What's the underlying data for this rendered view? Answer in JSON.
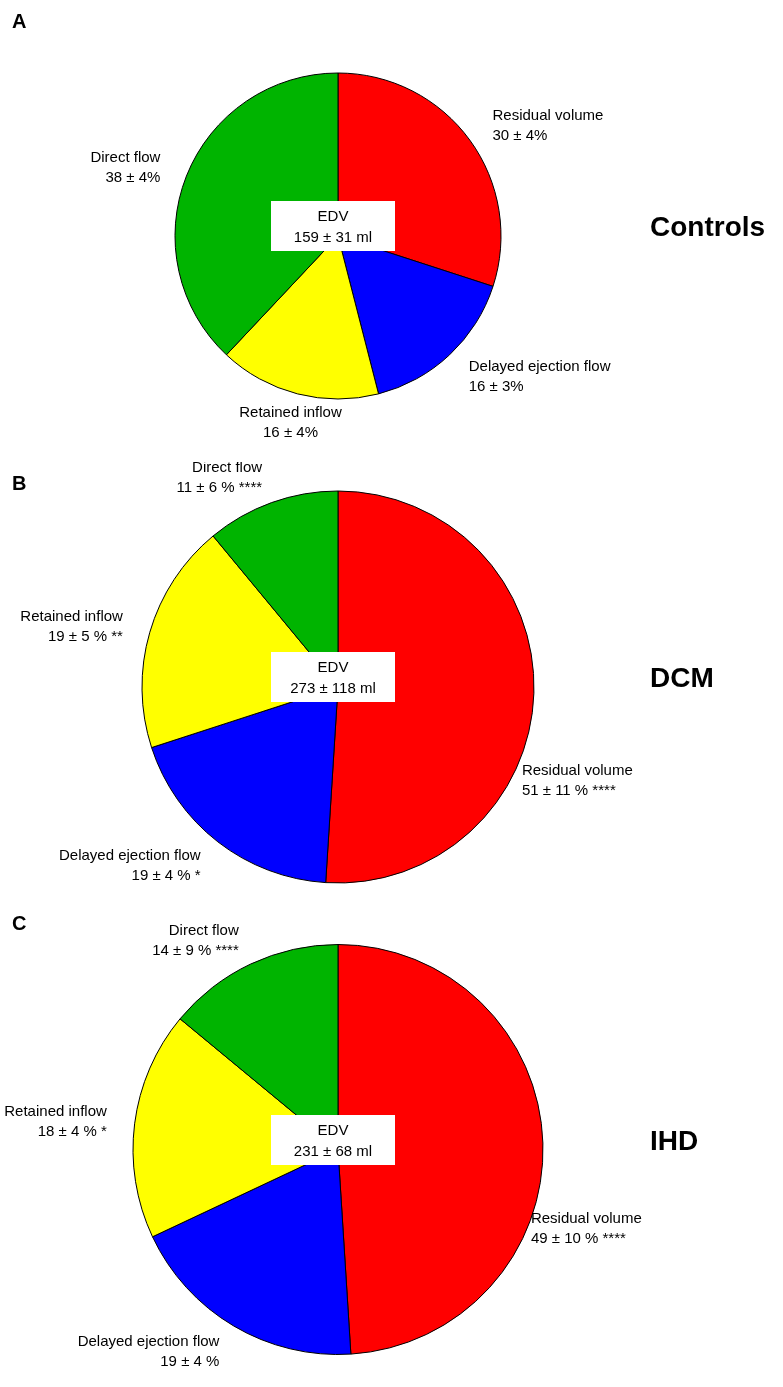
{
  "chart_data": [
    {
      "type": "pie",
      "title": "Controls",
      "categories": [
        "Residual volume",
        "Delayed ejection flow",
        "Retained inflow",
        "Direct flow"
      ],
      "values": [
        30,
        16,
        16,
        38
      ],
      "colors": [
        "#ff0000",
        "#0000ff",
        "#ffff00",
        "#00b400"
      ],
      "value_labels": [
        "30 ± 4%",
        "16 ± 3%",
        "16 ± 4%",
        "38 ± 4%"
      ],
      "annotations": [
        "A",
        "EDV",
        "159 ± 31 ml"
      ]
    },
    {
      "type": "pie",
      "title": "DCM",
      "categories": [
        "Residual volume",
        "Delayed ejection flow",
        "Retained inflow",
        "Direct flow"
      ],
      "values": [
        51,
        19,
        19,
        11
      ],
      "colors": [
        "#ff0000",
        "#0000ff",
        "#ffff00",
        "#00b400"
      ],
      "value_labels": [
        "51 ± 11 % ****",
        "19 ± 4 % *",
        "19 ± 5 % **",
        "11 ± 6 % ****"
      ],
      "annotations": [
        "B",
        "EDV",
        "273 ± 118 ml"
      ]
    },
    {
      "type": "pie",
      "title": "IHD",
      "categories": [
        "Residual volume",
        "Delayed ejection flow",
        "Retained inflow",
        "Direct flow"
      ],
      "values": [
        49,
        19,
        18,
        14
      ],
      "colors": [
        "#ff0000",
        "#0000ff",
        "#ffff00",
        "#00b400"
      ],
      "value_labels": [
        "49 ± 10 % ****",
        "19 ± 4 %",
        "18 ± 4 % *",
        "14 ± 9 % ****"
      ],
      "annotations": [
        "C",
        "EDV",
        "231 ± 68 ml"
      ]
    }
  ]
}
